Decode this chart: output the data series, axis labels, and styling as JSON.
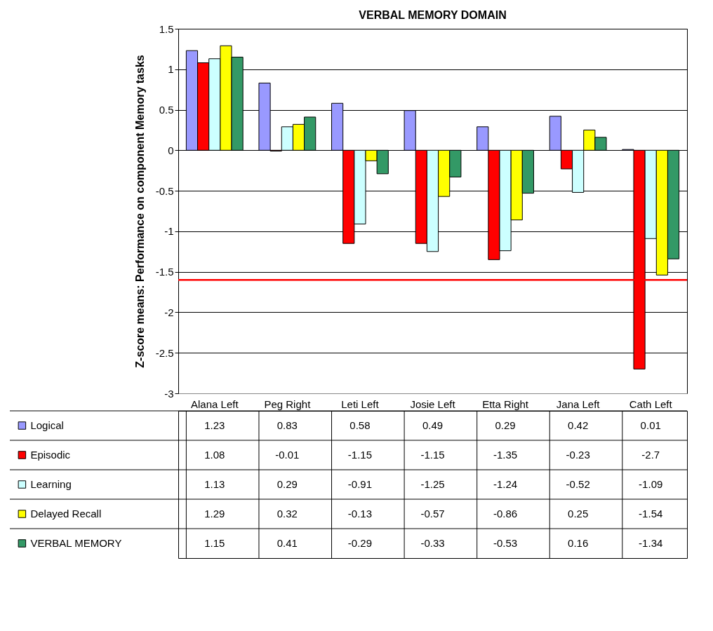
{
  "chart_data": {
    "type": "bar",
    "title": "VERBAL MEMORY DOMAIN",
    "ylabel": "Z-score means: Performance on component Memory tasks",
    "categories": [
      "Alana Left",
      "Peg Right",
      "Leti Left",
      "Josie Left",
      "Etta Right",
      "Jana Left",
      "Cath Left"
    ],
    "series": [
      {
        "name": "Logical",
        "color": "#9999ff",
        "values": [
          1.23,
          0.83,
          0.58,
          0.49,
          0.29,
          0.42,
          0.01
        ]
      },
      {
        "name": "Episodic",
        "color": "#ff0000",
        "values": [
          1.08,
          -0.01,
          -1.15,
          -1.15,
          -1.35,
          -0.23,
          -2.7
        ]
      },
      {
        "name": "Learning",
        "color": "#ccffff",
        "values": [
          1.13,
          0.29,
          -0.91,
          -1.25,
          -1.24,
          -0.52,
          -1.09
        ]
      },
      {
        "name": "Delayed Recall",
        "color": "#ffff00",
        "values": [
          1.29,
          0.32,
          -0.13,
          -0.57,
          -0.86,
          0.25,
          -1.54
        ]
      },
      {
        "name": "VERBAL MEMORY",
        "color": "#339966",
        "values": [
          1.15,
          0.41,
          -0.29,
          -0.33,
          -0.53,
          0.16,
          -1.34
        ]
      }
    ],
    "ylim": [
      -3,
      1.5
    ],
    "yticks": [
      -3,
      -2.5,
      -2,
      -1.5,
      -1,
      -0.5,
      0,
      0.5,
      1,
      1.5
    ],
    "ref_lines": [
      {
        "axis": "y",
        "value": -1.6,
        "color": "#ff0000"
      }
    ],
    "grid": "y",
    "legend": "bottom",
    "data_labels": true
  }
}
